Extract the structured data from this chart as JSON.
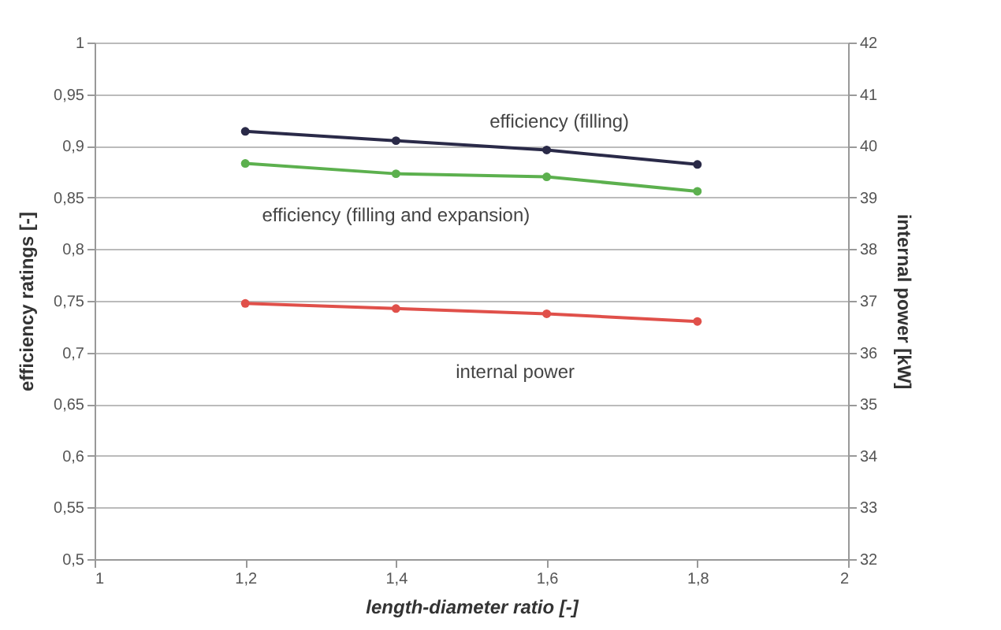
{
  "chart_data": {
    "type": "line",
    "xlabel": "length-diameter ratio [-]",
    "ylabel": "efficiency ratings [-]",
    "y2label": "internal power [kW]",
    "x": [
      1.2,
      1.4,
      1.6,
      1.8
    ],
    "series": [
      {
        "name": "efficiency (filling)",
        "color": "#2a2a48",
        "values": [
          0.914,
          0.905,
          0.896,
          0.882
        ]
      },
      {
        "name": "efficiency (filling and expansion)",
        "color": "#5cb04e",
        "values": [
          0.883,
          0.873,
          0.87,
          0.856
        ]
      },
      {
        "name": "internal power",
        "color": "#e0504a",
        "axis": "y2",
        "values": [
          36.95,
          36.85,
          36.75,
          36.6
        ]
      }
    ],
    "xlim": [
      1,
      2
    ],
    "xticks": [
      1,
      {
        "value": 1.2,
        "label": "1,2"
      },
      {
        "value": 1.4,
        "label": "1,4"
      },
      {
        "value": 1.6,
        "label": "1,6"
      },
      {
        "value": 1.8,
        "label": "1,8"
      },
      2
    ],
    "ylim": [
      0.5,
      1
    ],
    "yticks": [
      {
        "value": 0.5,
        "label": "0,5"
      },
      {
        "value": 0.55,
        "label": "0,55"
      },
      {
        "value": 0.6,
        "label": "0,6"
      },
      {
        "value": 0.65,
        "label": "0,65"
      },
      {
        "value": 0.7,
        "label": "0,7"
      },
      {
        "value": 0.75,
        "label": "0,75"
      },
      {
        "value": 0.8,
        "label": "0,8"
      },
      {
        "value": 0.85,
        "label": "0,85"
      },
      {
        "value": 0.9,
        "label": "0,9"
      },
      {
        "value": 0.95,
        "label": "0,95"
      },
      1
    ],
    "y2lim": [
      32,
      42
    ],
    "y2ticks": [
      32,
      33,
      34,
      35,
      36,
      37,
      38,
      39,
      40,
      41,
      42
    ],
    "grid": "y",
    "marker": "circle",
    "line_style": "solid",
    "legend": false
  }
}
